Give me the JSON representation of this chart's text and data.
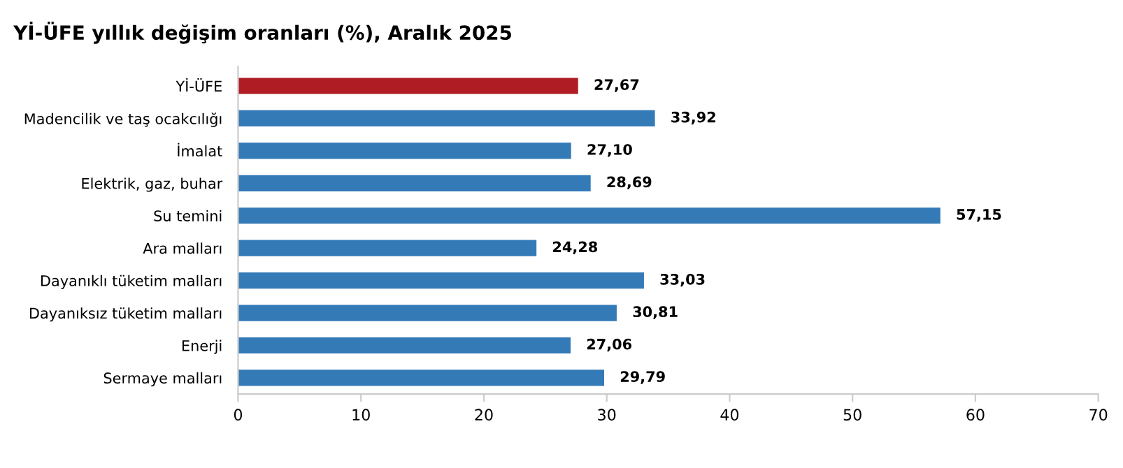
{
  "chart_data": {
    "type": "bar",
    "orientation": "horizontal",
    "title": "Yİ-ÜFE yıllık değişim oranları (%), Aralık 2025",
    "categories": [
      "Yİ-ÜFE",
      "Madencilik ve taş ocakcılığı",
      "İmalat",
      "Elektrik, gaz, buhar",
      "Su temini",
      "Ara malları",
      "Dayanıklı tüketim malları",
      "Dayanıksız tüketim malları",
      "Enerji",
      "Sermaye malları"
    ],
    "values": [
      27.67,
      33.92,
      27.1,
      28.69,
      57.15,
      24.28,
      33.03,
      30.81,
      27.06,
      29.79
    ],
    "value_labels": [
      "27,67",
      "33,92",
      "27,10",
      "28,69",
      "57,15",
      "24,28",
      "33,03",
      "30,81",
      "27,06",
      "29,79"
    ],
    "colors": [
      "#b01c24",
      "#337ab7",
      "#337ab7",
      "#337ab7",
      "#337ab7",
      "#337ab7",
      "#337ab7",
      "#337ab7",
      "#337ab7",
      "#337ab7"
    ],
    "xlim": [
      0,
      70
    ],
    "xticks": [
      0,
      10,
      20,
      30,
      40,
      50,
      60,
      70
    ],
    "grid": false
  }
}
